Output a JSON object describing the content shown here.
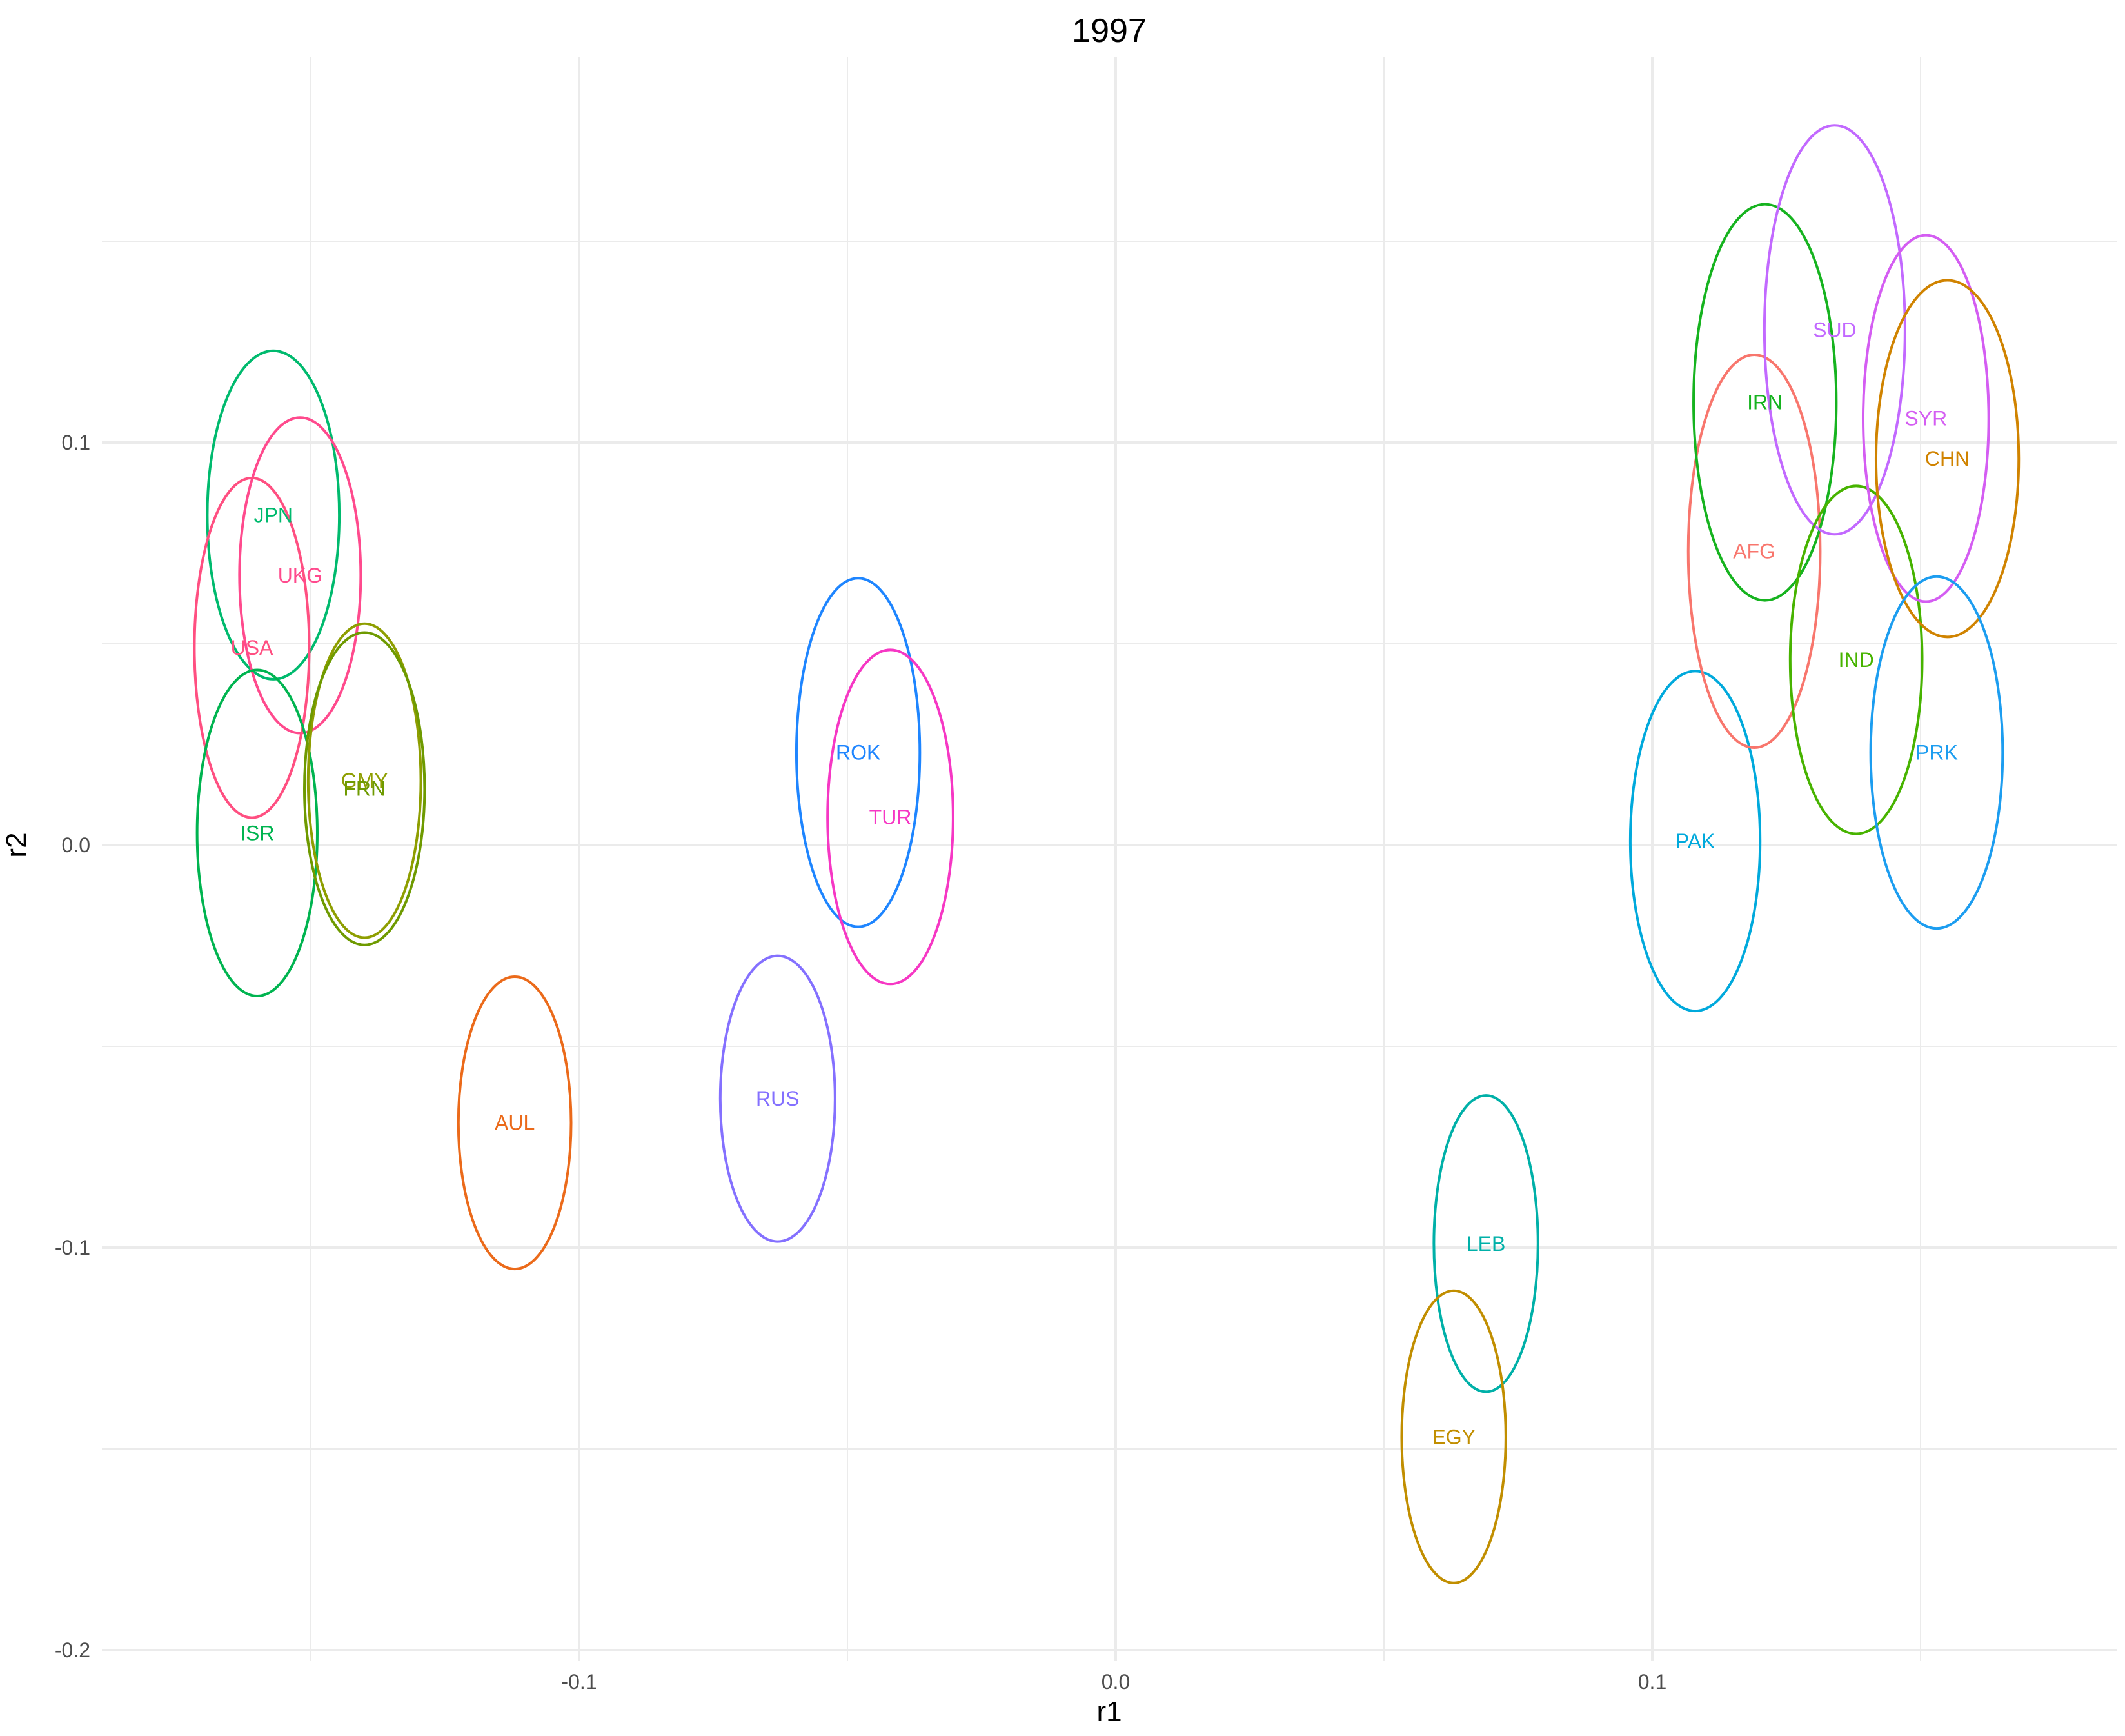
{
  "chart_data": {
    "type": "scatter",
    "title": "1997",
    "xlabel": "r1",
    "ylabel": "r2",
    "xlim": [
      -0.2,
      0.185
    ],
    "ylim": [
      -0.2,
      0.195
    ],
    "x_ticks": [
      -0.1,
      0.0,
      0.1
    ],
    "x_tick_labels": [
      "-0.1",
      "0.0",
      "0.1"
    ],
    "y_ticks": [
      -0.2,
      -0.1,
      0.0,
      0.1
    ],
    "y_tick_labels": [
      "-0.2",
      "-0.1",
      "0.0",
      "0.1"
    ],
    "grid": true,
    "legend": "none",
    "points": [
      {
        "label": "JPN",
        "x": -0.157,
        "y": 0.082,
        "x_radius": 0.0123,
        "y_radius": 0.0408,
        "color": "#00BA6E"
      },
      {
        "label": "UKG",
        "x": -0.152,
        "y": 0.067,
        "x_radius": 0.0113,
        "y_radius": 0.0392,
        "color": "#FF4A8D"
      },
      {
        "label": "USA",
        "x": -0.161,
        "y": 0.049,
        "x_radius": 0.0107,
        "y_radius": 0.0422,
        "color": "#FF4F81"
      },
      {
        "label": "ISR",
        "x": -0.16,
        "y": 0.003,
        "x_radius": 0.0112,
        "y_radius": 0.0405,
        "color": "#00B450"
      },
      {
        "label": "GMY",
        "x": -0.14,
        "y": 0.016,
        "x_radius": 0.0105,
        "y_radius": 0.039,
        "color": "#8E9E00"
      },
      {
        "label": "FRN",
        "x": -0.14,
        "y": 0.014,
        "x_radius": 0.0112,
        "y_radius": 0.0388,
        "color": "#6E9A00"
      },
      {
        "label": "AUL",
        "x": -0.112,
        "y": -0.069,
        "x_radius": 0.0105,
        "y_radius": 0.0363,
        "color": "#EB6A1A"
      },
      {
        "label": "RUS",
        "x": -0.063,
        "y": -0.063,
        "x_radius": 0.0107,
        "y_radius": 0.0355,
        "color": "#8470FF"
      },
      {
        "label": "ROK",
        "x": -0.048,
        "y": 0.023,
        "x_radius": 0.0115,
        "y_radius": 0.0433,
        "color": "#1E85FF"
      },
      {
        "label": "TUR",
        "x": -0.042,
        "y": 0.007,
        "x_radius": 0.0117,
        "y_radius": 0.0415,
        "color": "#F637C4"
      },
      {
        "label": "LEB",
        "x": 0.069,
        "y": -0.099,
        "x_radius": 0.0097,
        "y_radius": 0.0368,
        "color": "#00B0A8"
      },
      {
        "label": "EGY",
        "x": 0.063,
        "y": -0.147,
        "x_radius": 0.0097,
        "y_radius": 0.0363,
        "color": "#C18E00"
      },
      {
        "label": "PAK",
        "x": 0.108,
        "y": 0.001,
        "x_radius": 0.0121,
        "y_radius": 0.0422,
        "color": "#00A9DC"
      },
      {
        "label": "AFG",
        "x": 0.119,
        "y": 0.073,
        "x_radius": 0.0123,
        "y_radius": 0.0488,
        "color": "#F8766D"
      },
      {
        "label": "IRN",
        "x": 0.121,
        "y": 0.11,
        "x_radius": 0.0133,
        "y_radius": 0.0492,
        "color": "#16B31F"
      },
      {
        "label": "SUD",
        "x": 0.134,
        "y": 0.128,
        "x_radius": 0.0131,
        "y_radius": 0.0508,
        "color": "#C269FF"
      },
      {
        "label": "IND",
        "x": 0.138,
        "y": 0.046,
        "x_radius": 0.0123,
        "y_radius": 0.0432,
        "color": "#47B300"
      },
      {
        "label": "SYR",
        "x": 0.151,
        "y": 0.106,
        "x_radius": 0.0117,
        "y_radius": 0.0455,
        "color": "#D45DF2"
      },
      {
        "label": "CHN",
        "x": 0.155,
        "y": 0.096,
        "x_radius": 0.0133,
        "y_radius": 0.0443,
        "color": "#D08300"
      },
      {
        "label": "PRK",
        "x": 0.153,
        "y": 0.023,
        "x_radius": 0.0123,
        "y_radius": 0.0437,
        "color": "#1C9DF0"
      }
    ]
  }
}
